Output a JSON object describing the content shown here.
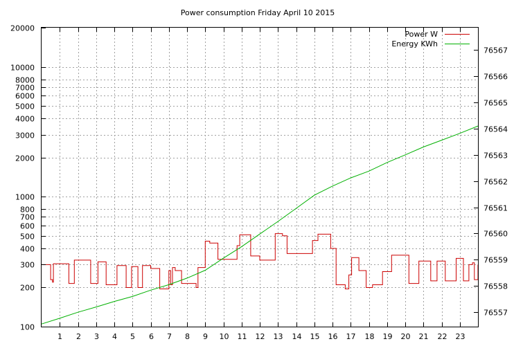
{
  "chart_data": {
    "type": "line",
    "title": "Power consumption Friday April 10 2015",
    "xlabel": "",
    "ylabel": "",
    "grid": true,
    "legend_position": "top-right",
    "x_range": [
      0,
      24
    ],
    "x_ticks": [
      1,
      2,
      3,
      4,
      5,
      6,
      7,
      8,
      9,
      10,
      11,
      12,
      13,
      14,
      15,
      16,
      17,
      18,
      19,
      20,
      21,
      22,
      23
    ],
    "y_left": {
      "scale": "log",
      "range": [
        100,
        20000
      ],
      "ticks": [
        {
          "value": 100,
          "label": "100"
        },
        {
          "value": 200,
          "label": "200"
        },
        {
          "value": 300,
          "label": "300"
        },
        {
          "value": 400,
          "label": "400"
        },
        {
          "value": 500,
          "label": "500"
        },
        {
          "value": 600,
          "label": "600"
        },
        {
          "value": 700,
          "label": "700"
        },
        {
          "value": 800,
          "label": "800"
        },
        {
          "value": 1000,
          "label": "1000"
        },
        {
          "value": 2000,
          "label": "2000"
        },
        {
          "value": 3000,
          "label": "3000"
        },
        {
          "value": 4000,
          "label": "4000"
        },
        {
          "value": 5000,
          "label": "5000"
        },
        {
          "value": 6000,
          "label": "6000"
        },
        {
          "value": 7000,
          "label": "7000"
        },
        {
          "value": 8000,
          "label": "8000"
        },
        {
          "value": 10000,
          "label": "10000"
        },
        {
          "value": 20000,
          "label": "20000"
        }
      ]
    },
    "y_right": {
      "scale": "log",
      "range": [
        76556.45,
        76567.85
      ],
      "ticks": [
        76557,
        76558,
        76559,
        76560,
        76561,
        76562,
        76563,
        76564,
        76565,
        76566,
        76567
      ]
    },
    "series": [
      {
        "name": "Power W",
        "color": "#cc0000",
        "axis": "left",
        "step": true,
        "x": [
          0,
          0.4,
          0.5,
          0.6,
          0.65,
          1.4,
          1.5,
          1.8,
          2.25,
          2.7,
          3.1,
          3.35,
          3.55,
          4.15,
          4.5,
          4.65,
          4.95,
          5.2,
          5.3,
          5.55,
          6.0,
          6.5,
          7.0,
          7.1,
          7.2,
          7.35,
          7.7,
          8.5,
          8.6,
          9.0,
          9.25,
          9.7,
          10.6,
          10.75,
          10.9,
          11.5,
          12.0,
          12.7,
          12.85,
          13.25,
          13.5,
          14.7,
          14.9,
          15.2,
          15.9,
          16.2,
          16.7,
          16.9,
          17.05,
          17.45,
          17.85,
          18.2,
          18.75,
          19.25,
          19.75,
          20.2,
          20.75,
          21.0,
          21.4,
          21.75,
          22.2,
          22.8,
          23.2,
          23.5,
          23.7,
          23.8,
          24.0
        ],
        "values": [
          300,
          300,
          230,
          220,
          305,
          305,
          215,
          325,
          325,
          215,
          315,
          315,
          210,
          295,
          295,
          200,
          290,
          290,
          200,
          295,
          280,
          195,
          270,
          210,
          285,
          270,
          215,
          200,
          285,
          455,
          440,
          330,
          330,
          420,
          510,
          350,
          325,
          325,
          520,
          500,
          365,
          365,
          460,
          515,
          400,
          210,
          195,
          250,
          340,
          270,
          200,
          210,
          265,
          355,
          355,
          215,
          320,
          320,
          225,
          320,
          225,
          335,
          225,
          300,
          310,
          230,
          300
        ]
      },
      {
        "name": "Energy KWh",
        "color": "#00b000",
        "axis": "right",
        "step": false,
        "x": [
          0,
          1,
          2,
          3,
          4,
          5,
          6,
          7,
          8,
          9,
          10,
          11,
          12,
          13,
          14,
          15,
          16,
          17,
          18,
          19,
          20,
          21,
          22,
          23,
          24
        ],
        "values": [
          76556.55,
          76556.77,
          76557.0,
          76557.2,
          76557.41,
          76557.6,
          76557.84,
          76558.05,
          76558.3,
          76558.6,
          76559.06,
          76559.5,
          76559.98,
          76560.46,
          76560.96,
          76561.46,
          76561.81,
          76562.12,
          76562.38,
          76562.71,
          76563.0,
          76563.3,
          76563.56,
          76563.82,
          76564.1
        ]
      }
    ]
  }
}
